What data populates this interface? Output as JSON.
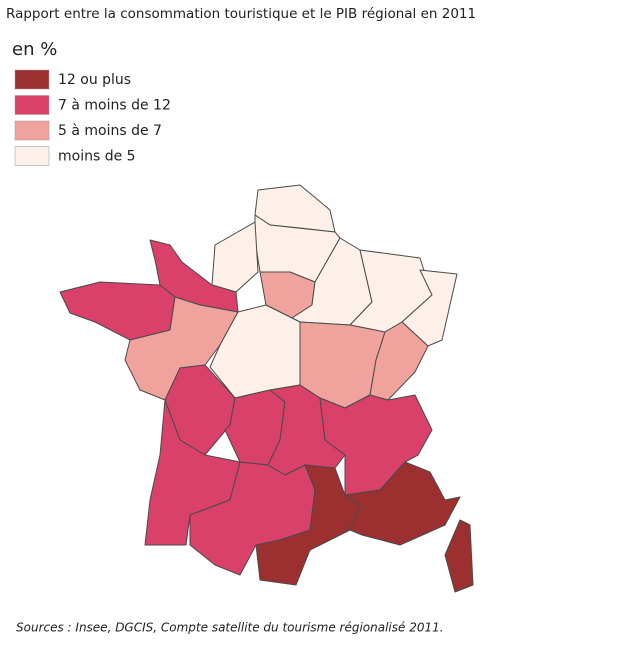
{
  "header": {
    "title": "Rapport entre la consommation touristique et le PIB régional en 2011"
  },
  "legend": {
    "title": "en %",
    "items": [
      {
        "label": "12 ou plus",
        "color": "#9c2f30"
      },
      {
        "label": "7 à moins de 12",
        "color": "#d9406a"
      },
      {
        "label": "5 à moins de 7",
        "color": "#f0a29c"
      },
      {
        "label": "moins de 5",
        "color": "#fcf0e8"
      }
    ]
  },
  "footer": {
    "source": "Sources : Insee, DGCIS, Compte satellite du tourisme régionalisé 2011."
  }
}
